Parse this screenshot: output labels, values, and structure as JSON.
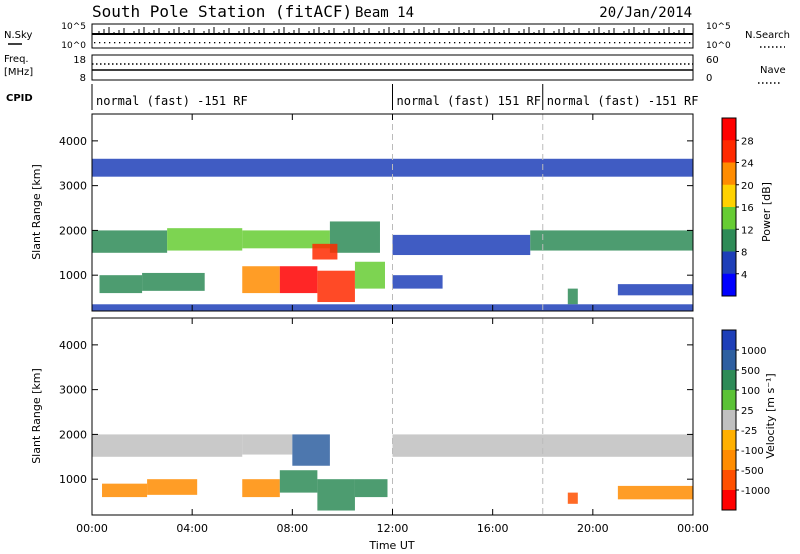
{
  "header": {
    "title": "South Pole Station (fitACF)",
    "beam": "Beam 14",
    "date": "20/Jan/2014"
  },
  "top_panels": {
    "nsky_label": "N.Sky",
    "nsky_ticks": [
      "10^5",
      "10^0"
    ],
    "nsearch_label": "N.Search",
    "nsearch_ticks": [
      "10^5",
      "10^0"
    ],
    "freq_label_1": "Freq.",
    "freq_label_2": "[MHz]",
    "freq_ticks": [
      "18",
      "8"
    ],
    "nave_label": "Nave",
    "nave_ticks": [
      "60",
      "0"
    ],
    "cpid_label": "CPID"
  },
  "cpid_segments": [
    {
      "label": "normal (fast) -151 RF",
      "start_hour": 0,
      "end_hour": 12
    },
    {
      "label": "normal (fast) 151 RF",
      "start_hour": 12,
      "end_hour": 18
    },
    {
      "label": "normal (fast) -151 RF",
      "start_hour": 18,
      "end_hour": 24
    }
  ],
  "x_axis": {
    "label": "Time UT",
    "ticks": [
      "00:00",
      "04:00",
      "08:00",
      "12:00",
      "16:00",
      "20:00",
      "00:00"
    ],
    "tick_hours": [
      0,
      4,
      8,
      12,
      16,
      20,
      24
    ],
    "range_hours": [
      0,
      24
    ]
  },
  "power_panel": {
    "ylabel": "Slant Range [km]",
    "yticks": [
      "1000",
      "2000",
      "3000",
      "4000"
    ],
    "ytick_values": [
      1000,
      2000,
      3000,
      4000
    ],
    "yrange": [
      200,
      4600
    ],
    "colorbar_label": "Power [dB]",
    "colorbar_ticks": [
      "4",
      "8",
      "12",
      "16",
      "20",
      "24",
      "28"
    ],
    "colorbar_colors": [
      "#0000ff",
      "#1e3fb8",
      "#2e8b57",
      "#66cc33",
      "#ffd200",
      "#ff8c00",
      "#ff2a00",
      "#ff0000"
    ]
  },
  "velocity_panel": {
    "ylabel": "Slant Range [km]",
    "yticks": [
      "1000",
      "2000",
      "3000",
      "4000"
    ],
    "ytick_values": [
      1000,
      2000,
      3000,
      4000
    ],
    "yrange": [
      200,
      4600
    ],
    "colorbar_label": "Velocity [m s⁻¹]",
    "colorbar_ticks": [
      "1000",
      "500",
      "100",
      "25",
      "-25",
      "-100",
      "-500",
      "-1000"
    ],
    "colorbar_colors": [
      "#1e3fb8",
      "#2e5fa0",
      "#2e8b57",
      "#5bc236",
      "#c0c0c0",
      "#ffb000",
      "#ff8c00",
      "#ff5000",
      "#ff0000"
    ]
  },
  "chart_data": [
    {
      "type": "heatmap",
      "title": "Power [dB]",
      "x_unit": "hours UT",
      "y_unit": "km",
      "xlim": [
        0,
        24
      ],
      "ylim": [
        200,
        4600
      ],
      "cells": [
        {
          "x0": 0.0,
          "x1": 3.0,
          "y0": 1500,
          "y1": 2000,
          "value": 10
        },
        {
          "x0": 3.0,
          "x1": 6.0,
          "y0": 1550,
          "y1": 2050,
          "value": 12
        },
        {
          "x0": 6.0,
          "x1": 9.5,
          "y0": 1600,
          "y1": 2000,
          "value": 14
        },
        {
          "x0": 9.5,
          "x1": 11.5,
          "y0": 1500,
          "y1": 2200,
          "value": 8
        },
        {
          "x0": 12.0,
          "x1": 17.5,
          "y0": 1450,
          "y1": 1900,
          "value": 6
        },
        {
          "x0": 17.5,
          "x1": 24.0,
          "y0": 1550,
          "y1": 2000,
          "value": 8
        },
        {
          "x0": 0.3,
          "x1": 2.0,
          "y0": 600,
          "y1": 1000,
          "value": 8
        },
        {
          "x0": 2.0,
          "x1": 4.5,
          "y0": 650,
          "y1": 1050,
          "value": 10
        },
        {
          "x0": 6.0,
          "x1": 7.5,
          "y0": 600,
          "y1": 1200,
          "value": 20
        },
        {
          "x0": 7.5,
          "x1": 9.0,
          "y0": 600,
          "y1": 1200,
          "value": 29
        },
        {
          "x0": 9.0,
          "x1": 10.5,
          "y0": 400,
          "y1": 1100,
          "value": 24
        },
        {
          "x0": 8.8,
          "x1": 9.8,
          "y0": 1350,
          "y1": 1700,
          "value": 26
        },
        {
          "x0": 10.5,
          "x1": 11.7,
          "y0": 700,
          "y1": 1300,
          "value": 14
        },
        {
          "x0": 12.0,
          "x1": 14.0,
          "y0": 700,
          "y1": 1000,
          "value": 6
        },
        {
          "x0": 19.0,
          "x1": 19.4,
          "y0": 350,
          "y1": 700,
          "value": 8
        },
        {
          "x0": 21.0,
          "x1": 24.0,
          "y0": 550,
          "y1": 800,
          "value": 6
        },
        {
          "x0": 0.0,
          "x1": 24.0,
          "y0": 200,
          "y1": 350,
          "value": 4
        },
        {
          "x0": 0.0,
          "x1": 24.0,
          "y0": 3200,
          "y1": 3600,
          "value": 4
        }
      ]
    },
    {
      "type": "heatmap",
      "title": "Velocity [m s⁻¹]",
      "x_unit": "hours UT",
      "y_unit": "km",
      "xlim": [
        0,
        24
      ],
      "ylim": [
        200,
        4600
      ],
      "cells": [
        {
          "x0": 0.0,
          "x1": 6.0,
          "y0": 1500,
          "y1": 2000,
          "value": 0
        },
        {
          "x0": 6.0,
          "x1": 8.0,
          "y0": 1550,
          "y1": 2000,
          "value": -10
        },
        {
          "x0": 12.0,
          "x1": 24.0,
          "y0": 1500,
          "y1": 2000,
          "value": 0
        },
        {
          "x0": 0.4,
          "x1": 2.2,
          "y0": 600,
          "y1": 900,
          "value": -200
        },
        {
          "x0": 2.2,
          "x1": 4.2,
          "y0": 650,
          "y1": 1000,
          "value": -250
        },
        {
          "x0": 6.0,
          "x1": 7.5,
          "y0": 600,
          "y1": 1000,
          "value": -150
        },
        {
          "x0": 7.5,
          "x1": 9.0,
          "y0": 700,
          "y1": 1200,
          "value": 300
        },
        {
          "x0": 8.0,
          "x1": 9.5,
          "y0": 1300,
          "y1": 2000,
          "value": 800
        },
        {
          "x0": 9.0,
          "x1": 10.5,
          "y0": 300,
          "y1": 1000,
          "value": 200
        },
        {
          "x0": 10.5,
          "x1": 11.8,
          "y0": 600,
          "y1": 1000,
          "value": 150
        },
        {
          "x0": 19.0,
          "x1": 19.4,
          "y0": 450,
          "y1": 700,
          "value": -800
        },
        {
          "x0": 21.0,
          "x1": 24.0,
          "y0": 550,
          "y1": 850,
          "value": -300
        }
      ]
    }
  ]
}
